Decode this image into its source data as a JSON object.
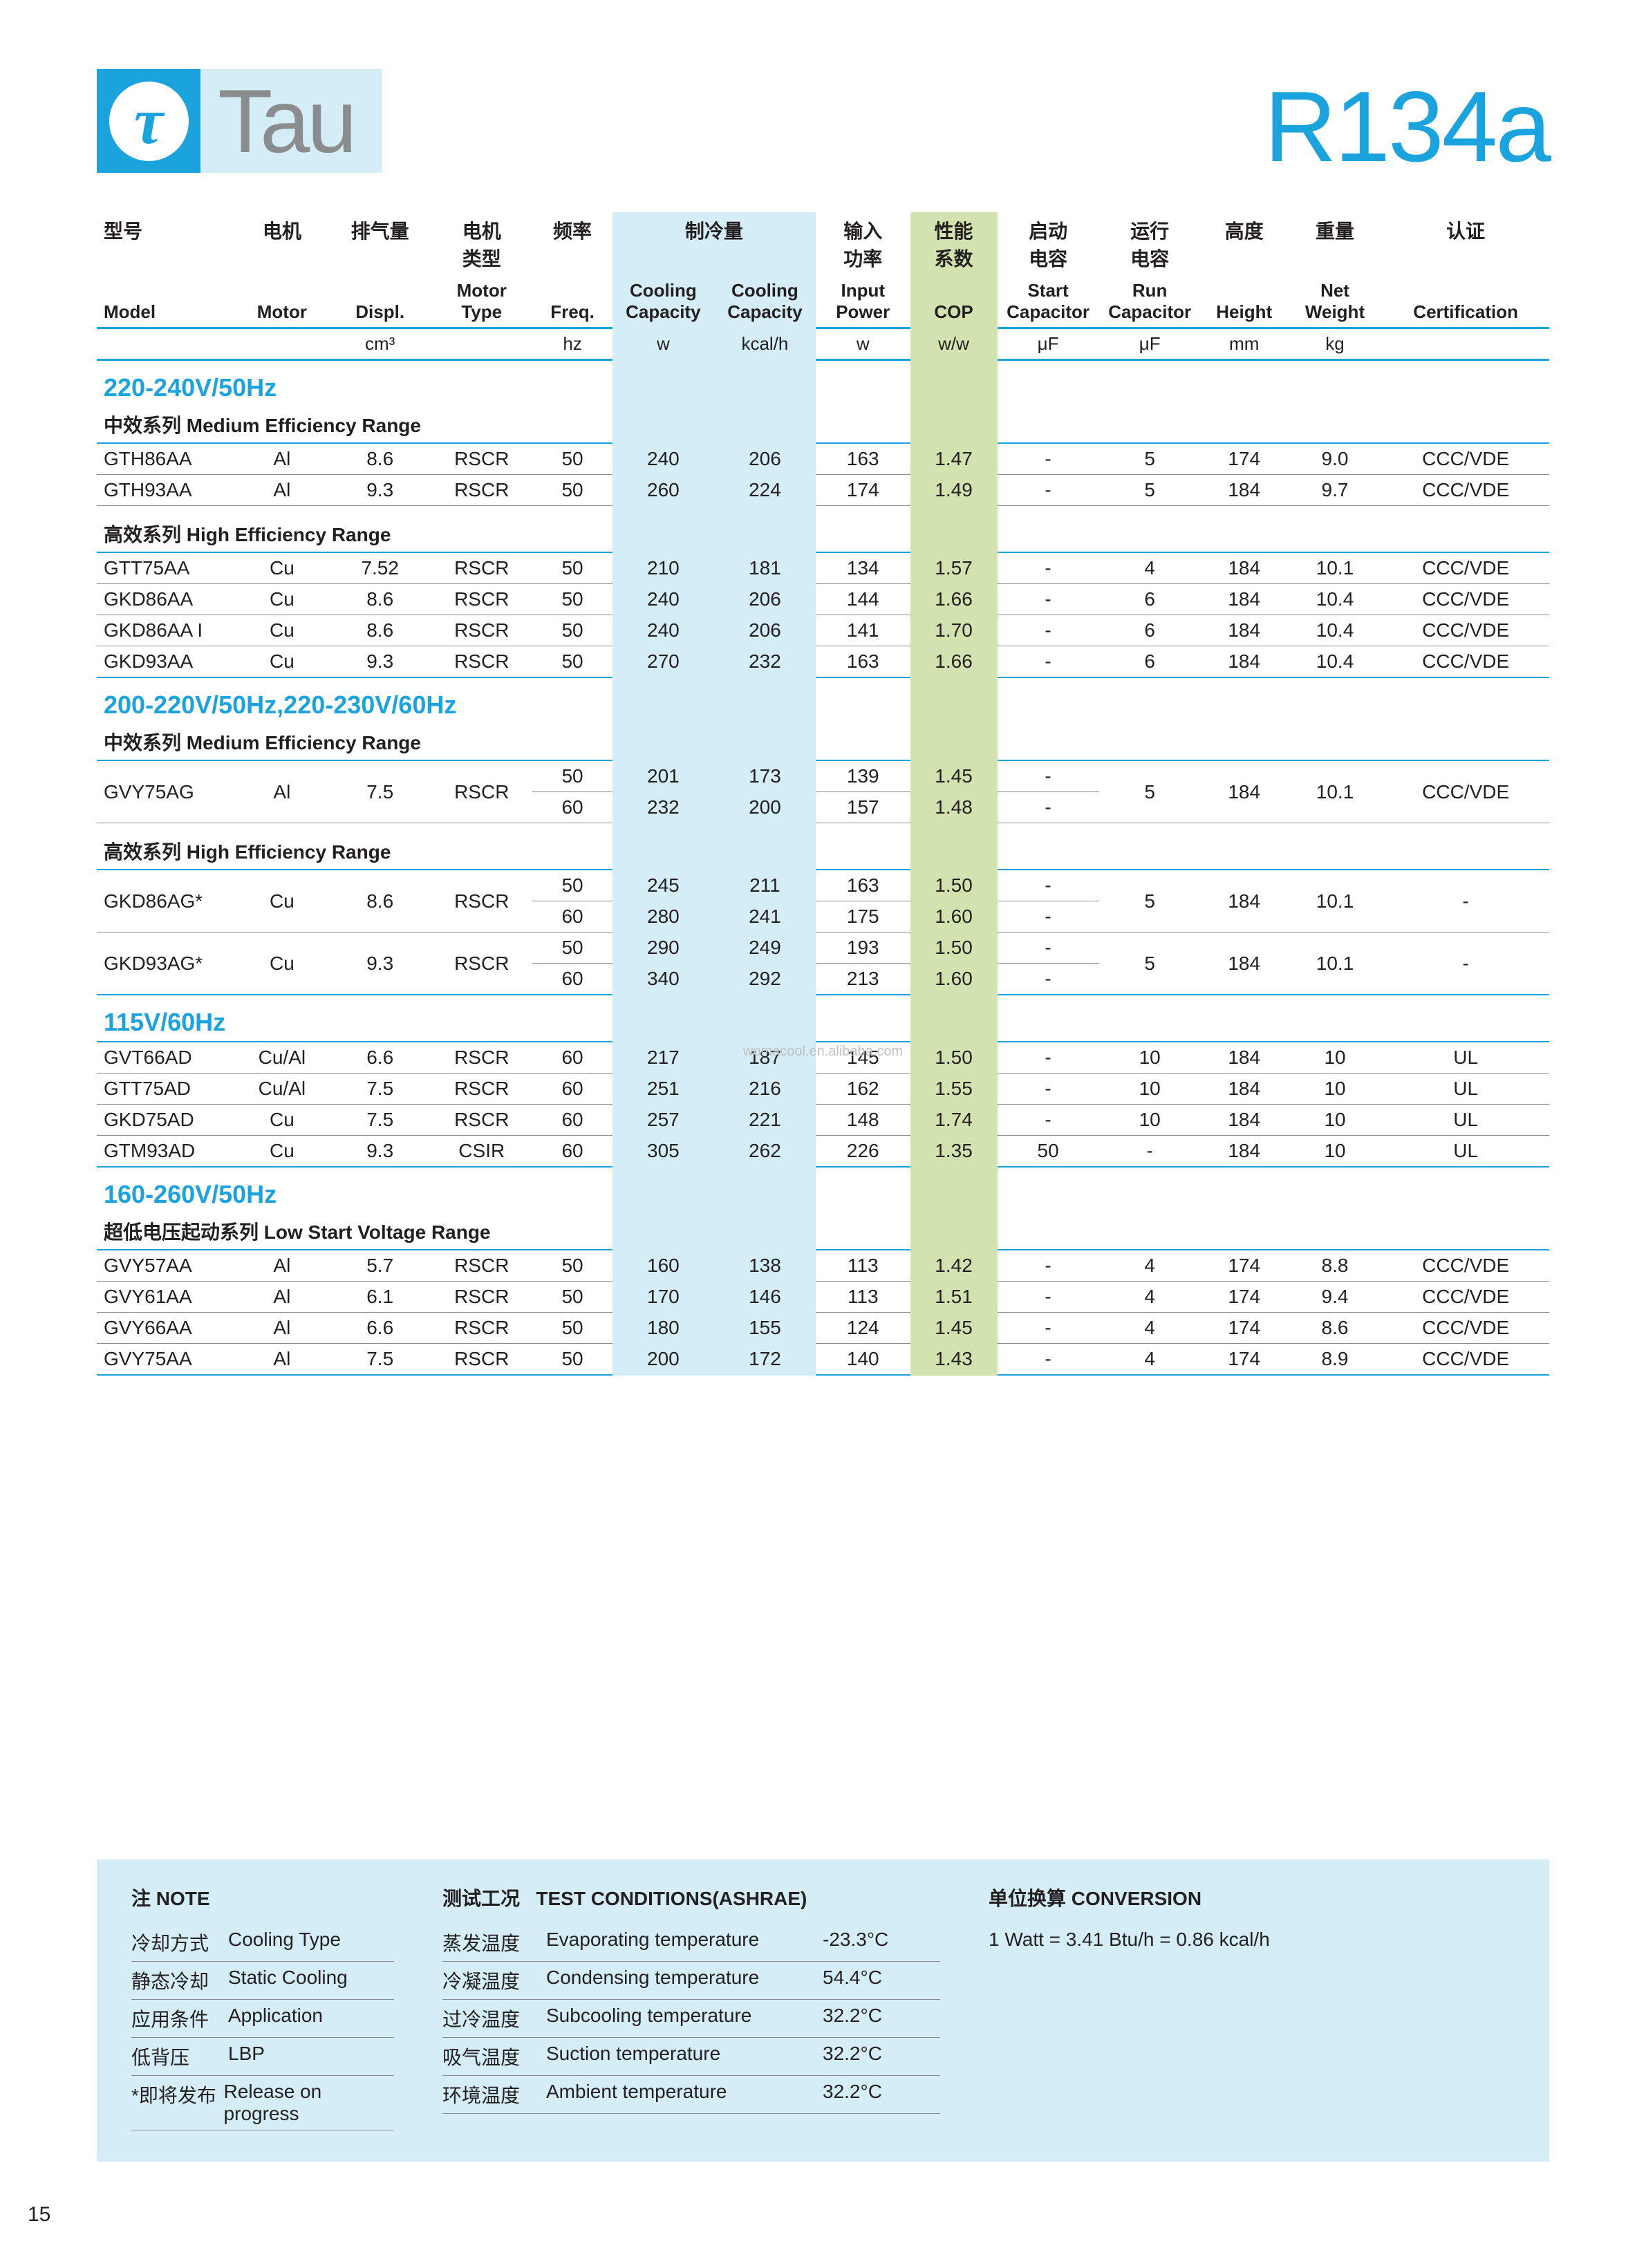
{
  "logo": {
    "glyph": "τ",
    "text": "Tau"
  },
  "refrigerant": "R134a",
  "columns": {
    "cn": [
      "型号",
      "电机",
      "排气量",
      "电机\n类型",
      "频率",
      "制冷量",
      "",
      "输入\n功率",
      "性能\n系数",
      "启动\n电容",
      "运行\n电容",
      "高度",
      "重量",
      "认证"
    ],
    "en": [
      "Model",
      "Motor",
      "Displ.",
      "Motor\nType",
      "Freq.",
      "Cooling\nCapacity",
      "Cooling\nCapacity",
      "Input\nPower",
      "COP",
      "Start\nCapacitor",
      "Run\nCapacitor",
      "Height",
      "Net\nWeight",
      "Certification"
    ],
    "units": [
      "",
      "",
      "cm³",
      "",
      "hz",
      "w",
      "kcal/h",
      "w",
      "w/w",
      "μF",
      "μF",
      "mm",
      "kg",
      ""
    ]
  },
  "col_widths_pct": [
    9.5,
    6.5,
    7,
    7,
    5.5,
    7,
    7,
    6.5,
    6,
    7,
    7,
    6,
    6.5,
    11.5
  ],
  "stripe_cool": {
    "left_pct": 35.5,
    "width_pct": 14
  },
  "stripe_cop": {
    "left_pct": 56,
    "width_pct": 6
  },
  "watermark": "womacool.en.alibaba.com",
  "sections": [
    {
      "title": "220-240V/50Hz",
      "groups": [
        {
          "sub_cn": "中效系列",
          "sub_en": "Medium Efficiency Range",
          "rows": [
            [
              "GTH86AA",
              "Al",
              "8.6",
              "RSCR",
              "50",
              "240",
              "206",
              "163",
              "1.47",
              "-",
              "5",
              "174",
              "9.0",
              "CCC/VDE"
            ],
            [
              "GTH93AA",
              "Al",
              "9.3",
              "RSCR",
              "50",
              "260",
              "224",
              "174",
              "1.49",
              "-",
              "5",
              "184",
              "9.7",
              "CCC/VDE"
            ]
          ]
        },
        {
          "sub_cn": "高效系列",
          "sub_en": "High Efficiency Range",
          "tight": true,
          "rows": [
            [
              "GTT75AA",
              "Cu",
              "7.52",
              "RSCR",
              "50",
              "210",
              "181",
              "134",
              "1.57",
              "-",
              "4",
              "184",
              "10.1",
              "CCC/VDE"
            ],
            [
              "GKD86AA",
              "Cu",
              "8.6",
              "RSCR",
              "50",
              "240",
              "206",
              "144",
              "1.66",
              "-",
              "6",
              "184",
              "10.4",
              "CCC/VDE"
            ],
            [
              "GKD86AA I",
              "Cu",
              "8.6",
              "RSCR",
              "50",
              "240",
              "206",
              "141",
              "1.70",
              "-",
              "6",
              "184",
              "10.4",
              "CCC/VDE"
            ],
            [
              "GKD93AA",
              "Cu",
              "9.3",
              "RSCR",
              "50",
              "270",
              "232",
              "163",
              "1.66",
              "-",
              "6",
              "184",
              "10.4",
              "CCC/VDE"
            ]
          ]
        }
      ]
    },
    {
      "title": "200-220V/50Hz,220-230V/60Hz",
      "groups": [
        {
          "sub_cn": "中效系列",
          "sub_en": "Medium Efficiency Range",
          "dualrows": [
            {
              "base": [
                "GVY75AG",
                "Al",
                "7.5",
                "RSCR",
                "",
                "",
                "",
                "",
                "",
                "",
                "5",
                "184",
                "10.1",
                "CCC/VDE"
              ],
              "lines": [
                [
                  "50",
                  "201",
                  "173",
                  "139",
                  "1.45",
                  "-"
                ],
                [
                  "60",
                  "232",
                  "200",
                  "157",
                  "1.48",
                  "-"
                ]
              ]
            }
          ]
        },
        {
          "sub_cn": "高效系列",
          "sub_en": "High Efficiency Range",
          "tight": true,
          "dualrows": [
            {
              "base": [
                "GKD86AG*",
                "Cu",
                "8.6",
                "RSCR",
                "",
                "",
                "",
                "",
                "",
                "",
                "5",
                "184",
                "10.1",
                "-"
              ],
              "lines": [
                [
                  "50",
                  "245",
                  "211",
                  "163",
                  "1.50",
                  "-"
                ],
                [
                  "60",
                  "280",
                  "241",
                  "175",
                  "1.60",
                  "-"
                ]
              ]
            },
            {
              "base": [
                "GKD93AG*",
                "Cu",
                "9.3",
                "RSCR",
                "",
                "",
                "",
                "",
                "",
                "",
                "5",
                "184",
                "10.1",
                "-"
              ],
              "lines": [
                [
                  "50",
                  "290",
                  "249",
                  "193",
                  "1.50",
                  "-"
                ],
                [
                  "60",
                  "340",
                  "292",
                  "213",
                  "1.60",
                  "-"
                ]
              ]
            }
          ]
        }
      ]
    },
    {
      "title": "115V/60Hz",
      "groups": [
        {
          "rows": [
            [
              "GVT66AD",
              "Cu/Al",
              "6.6",
              "RSCR",
              "60",
              "217",
              "187",
              "145",
              "1.50",
              "-",
              "10",
              "184",
              "10",
              "UL"
            ],
            [
              "GTT75AD",
              "Cu/Al",
              "7.5",
              "RSCR",
              "60",
              "251",
              "216",
              "162",
              "1.55",
              "-",
              "10",
              "184",
              "10",
              "UL"
            ],
            [
              "GKD75AD",
              "Cu",
              "7.5",
              "RSCR",
              "60",
              "257",
              "221",
              "148",
              "1.74",
              "-",
              "10",
              "184",
              "10",
              "UL"
            ],
            [
              "GTM93AD",
              "Cu",
              "9.3",
              "CSIR",
              "60",
              "305",
              "262",
              "226",
              "1.35",
              "50",
              "-",
              "184",
              "10",
              "UL"
            ]
          ]
        }
      ]
    },
    {
      "title": "160-260V/50Hz",
      "groups": [
        {
          "sub_cn": "超低电压起动系列",
          "sub_en": "Low Start Voltage Range",
          "rows": [
            [
              "GVY57AA",
              "Al",
              "5.7",
              "RSCR",
              "50",
              "160",
              "138",
              "113",
              "1.42",
              "-",
              "4",
              "174",
              "8.8",
              "CCC/VDE"
            ],
            [
              "GVY61AA",
              "Al",
              "6.1",
              "RSCR",
              "50",
              "170",
              "146",
              "113",
              "1.51",
              "-",
              "4",
              "174",
              "9.4",
              "CCC/VDE"
            ],
            [
              "GVY66AA",
              "Al",
              "6.6",
              "RSCR",
              "50",
              "180",
              "155",
              "124",
              "1.45",
              "-",
              "4",
              "174",
              "8.6",
              "CCC/VDE"
            ],
            [
              "GVY75AA",
              "Al",
              "7.5",
              "RSCR",
              "50",
              "200",
              "172",
              "140",
              "1.43",
              "-",
              "4",
              "174",
              "8.9",
              "CCC/VDE"
            ]
          ]
        }
      ]
    }
  ],
  "footer": {
    "note_hdr_cn": "注",
    "note_hdr_en": "NOTE",
    "notes": [
      [
        "冷却方式",
        "Cooling Type"
      ],
      [
        "静态冷却",
        "Static Cooling"
      ],
      [
        "应用条件",
        "Application"
      ],
      [
        "低背压",
        "LBP"
      ],
      [
        "*即将发布",
        "Release on progress"
      ]
    ],
    "test_hdr_cn": "测试工况",
    "test_hdr_en": "TEST CONDITIONS(ASHRAE)",
    "tests": [
      [
        "蒸发温度",
        "Evaporating temperature",
        "-23.3°C"
      ],
      [
        "冷凝温度",
        "Condensing temperature",
        "54.4°C"
      ],
      [
        "过冷温度",
        "Subcooling temperature",
        "32.2°C"
      ],
      [
        "吸气温度",
        "Suction temperature",
        "32.2°C"
      ],
      [
        "环境温度",
        "Ambient temperature",
        "32.2°C"
      ]
    ],
    "conv_hdr_cn": "单位换算",
    "conv_hdr_en": "CONVERSION",
    "conv_text": "1 Watt = 3.41 Btu/h = 0.86 kcal/h"
  },
  "pagenum": "15"
}
